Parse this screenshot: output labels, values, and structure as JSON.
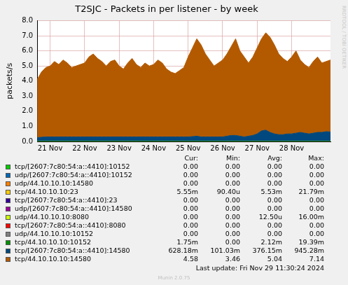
{
  "chart_data": {
    "type": "line",
    "title": "T2SJC - Packets in per listener - by week",
    "y_label": "packets/s",
    "stacked": true,
    "grid": true,
    "categories": [
      null,
      null,
      null,
      "21 Nov",
      null,
      null,
      null,
      null,
      null,
      null,
      null,
      "22 Nov",
      null,
      null,
      null,
      null,
      null,
      null,
      null,
      "23 Nov",
      null,
      null,
      null,
      null,
      null,
      null,
      null,
      "24 Nov",
      null,
      null,
      null,
      null,
      null,
      null,
      null,
      "25 Nov",
      null,
      null,
      null,
      null,
      null,
      null,
      null,
      "26 Nov",
      null,
      null,
      null,
      null,
      null,
      null,
      null,
      "27 Nov",
      null,
      null,
      null,
      null,
      null,
      null,
      null,
      "28 Nov",
      null,
      null,
      null,
      null,
      null,
      null,
      null,
      null,
      null
    ],
    "ylim": [
      0,
      8
    ],
    "yticks": [
      {
        "value": 0,
        "label": "0.0"
      },
      {
        "value": 1,
        "label": "1.0"
      },
      {
        "value": 2,
        "label": "2.0"
      },
      {
        "value": 3,
        "label": "3.0"
      },
      {
        "value": 4,
        "label": "4.0"
      },
      {
        "value": 5,
        "label": "5.0"
      },
      {
        "value": 6,
        "label": "6.0"
      },
      {
        "value": 7,
        "label": "7.0"
      },
      {
        "value": 8,
        "label": "8.0"
      }
    ],
    "stats_columns": [
      "Cur:",
      "Min:",
      "Avg:",
      "Max:"
    ],
    "series": [
      {
        "name": "tcp/[2607:7c80:54:a::4410]:10152",
        "color": "#00CC00",
        "stats": [
          "0.00",
          "0.00",
          "0.00",
          "0.00"
        ],
        "values": [
          0,
          0,
          0,
          0,
          0,
          0,
          0,
          0,
          0,
          0,
          0,
          0,
          0,
          0,
          0,
          0,
          0,
          0,
          0,
          0,
          0,
          0,
          0,
          0,
          0,
          0,
          0,
          0,
          0,
          0,
          0,
          0,
          0,
          0,
          0,
          0,
          0,
          0,
          0,
          0,
          0,
          0,
          0,
          0,
          0,
          0,
          0,
          0,
          0,
          0,
          0,
          0,
          0,
          0,
          0,
          0,
          0,
          0,
          0,
          0,
          0,
          0,
          0,
          0,
          0,
          0,
          0,
          0,
          0
        ]
      },
      {
        "name": "udp/[2607:7c80:54:a::4410]:10152",
        "color": "#0066B3",
        "stats": [
          "0.00",
          "0.00",
          "0.00",
          "0.00"
        ],
        "values": [
          0,
          0,
          0,
          0,
          0,
          0,
          0,
          0,
          0,
          0,
          0,
          0,
          0,
          0,
          0,
          0,
          0,
          0,
          0,
          0,
          0,
          0,
          0,
          0,
          0,
          0,
          0,
          0,
          0,
          0,
          0,
          0,
          0,
          0,
          0,
          0,
          0,
          0,
          0,
          0,
          0,
          0,
          0,
          0,
          0,
          0,
          0,
          0,
          0,
          0,
          0,
          0,
          0,
          0,
          0,
          0,
          0,
          0,
          0,
          0,
          0,
          0,
          0,
          0,
          0,
          0,
          0,
          0,
          0
        ]
      },
      {
        "name": "udp/44.10.10.10:14580",
        "color": "#FF8000",
        "stats": [
          "0.00",
          "0.00",
          "0.00",
          "0.00"
        ],
        "values": [
          0,
          0,
          0,
          0,
          0,
          0,
          0,
          0,
          0,
          0,
          0,
          0,
          0,
          0,
          0,
          0,
          0,
          0,
          0,
          0,
          0,
          0,
          0,
          0,
          0,
          0,
          0,
          0,
          0,
          0,
          0,
          0,
          0,
          0,
          0,
          0,
          0,
          0,
          0,
          0,
          0,
          0,
          0,
          0,
          0,
          0,
          0,
          0,
          0,
          0,
          0,
          0,
          0,
          0,
          0,
          0,
          0,
          0,
          0,
          0,
          0,
          0,
          0,
          0,
          0,
          0,
          0,
          0,
          0
        ]
      },
      {
        "name": "tcp/44.10.10.10:23",
        "color": "#FFCC00",
        "stats": [
          "5.55m",
          "90.40u",
          "5.53m",
          "21.79m"
        ],
        "values": [
          0,
          0,
          0,
          0,
          0,
          0,
          0,
          0,
          0,
          0,
          0,
          0,
          0,
          0,
          0,
          0,
          0,
          0,
          0,
          0,
          0,
          0,
          0,
          0,
          0,
          0,
          0,
          0,
          0,
          0,
          0,
          0,
          0,
          0,
          0,
          0,
          0,
          0,
          0,
          0,
          0,
          0,
          0,
          0,
          0,
          0,
          0,
          0,
          0,
          0,
          0,
          0,
          0,
          0,
          0,
          0,
          0,
          0,
          0,
          0,
          0,
          0,
          0,
          0,
          0,
          0,
          0,
          0,
          0
        ]
      },
      {
        "name": "tcp/[2607:7c80:54:a::4410]:23",
        "color": "#330099",
        "stats": [
          "0.00",
          "0.00",
          "0.00",
          "0.00"
        ],
        "values": [
          0,
          0,
          0,
          0,
          0,
          0,
          0,
          0,
          0,
          0,
          0,
          0,
          0,
          0,
          0,
          0,
          0,
          0,
          0,
          0,
          0,
          0,
          0,
          0,
          0,
          0,
          0,
          0,
          0,
          0,
          0,
          0,
          0,
          0,
          0,
          0,
          0,
          0,
          0,
          0,
          0,
          0,
          0,
          0,
          0,
          0,
          0,
          0,
          0,
          0,
          0,
          0,
          0,
          0,
          0,
          0,
          0,
          0,
          0,
          0,
          0,
          0,
          0,
          0,
          0,
          0,
          0,
          0,
          0
        ]
      },
      {
        "name": "udp/[2607:7c80:54:a::4410]:14580",
        "color": "#990099",
        "stats": [
          "0.00",
          "0.00",
          "0.00",
          "0.00"
        ],
        "values": [
          0,
          0,
          0,
          0,
          0,
          0,
          0,
          0,
          0,
          0,
          0,
          0,
          0,
          0,
          0,
          0,
          0,
          0,
          0,
          0,
          0,
          0,
          0,
          0,
          0,
          0,
          0,
          0,
          0,
          0,
          0,
          0,
          0,
          0,
          0,
          0,
          0,
          0,
          0,
          0,
          0,
          0,
          0,
          0,
          0,
          0,
          0,
          0,
          0,
          0,
          0,
          0,
          0,
          0,
          0,
          0,
          0,
          0,
          0,
          0,
          0,
          0,
          0,
          0,
          0,
          0,
          0,
          0,
          0
        ]
      },
      {
        "name": "udp/44.10.10.10:8080",
        "color": "#CCFF00",
        "stats": [
          "0.00",
          "0.00",
          "12.50u",
          "16.00m"
        ],
        "values": [
          0,
          0,
          0,
          0,
          0,
          0,
          0,
          0,
          0,
          0,
          0,
          0,
          0,
          0,
          0,
          0,
          0,
          0,
          0,
          0,
          0,
          0,
          0,
          0,
          0,
          0,
          0,
          0,
          0,
          0,
          0,
          0,
          0,
          0,
          0,
          0,
          0,
          0,
          0,
          0,
          0,
          0,
          0,
          0,
          0,
          0,
          0,
          0,
          0,
          0,
          0,
          0,
          0,
          0,
          0,
          0,
          0,
          0,
          0,
          0,
          0,
          0,
          0,
          0,
          0,
          0,
          0,
          0,
          0
        ]
      },
      {
        "name": "tcp/[2607:7c80:54:a::4410]:8080",
        "color": "#FF0000",
        "stats": [
          "0.00",
          "0.00",
          "0.00",
          "0.00"
        ],
        "values": [
          0,
          0,
          0,
          0,
          0,
          0,
          0,
          0,
          0,
          0,
          0,
          0,
          0,
          0,
          0,
          0,
          0,
          0,
          0,
          0,
          0,
          0,
          0,
          0,
          0,
          0,
          0,
          0,
          0,
          0,
          0,
          0,
          0,
          0,
          0,
          0,
          0,
          0,
          0,
          0,
          0,
          0,
          0,
          0,
          0,
          0,
          0,
          0,
          0,
          0,
          0,
          0,
          0,
          0,
          0,
          0,
          0,
          0,
          0,
          0,
          0,
          0,
          0,
          0,
          0,
          0,
          0,
          0,
          0
        ]
      },
      {
        "name": "udp/44.10.10.10:10152",
        "color": "#808080",
        "stats": [
          "0.00",
          "0.00",
          "0.00",
          "0.00"
        ],
        "values": [
          0,
          0,
          0,
          0,
          0,
          0,
          0,
          0,
          0,
          0,
          0,
          0,
          0,
          0,
          0,
          0,
          0,
          0,
          0,
          0,
          0,
          0,
          0,
          0,
          0,
          0,
          0,
          0,
          0,
          0,
          0,
          0,
          0,
          0,
          0,
          0,
          0,
          0,
          0,
          0,
          0,
          0,
          0,
          0,
          0,
          0,
          0,
          0,
          0,
          0,
          0,
          0,
          0,
          0,
          0,
          0,
          0,
          0,
          0,
          0,
          0,
          0,
          0,
          0,
          0,
          0,
          0,
          0,
          0
        ]
      },
      {
        "name": "tcp/44.10.10.10:10152",
        "color": "#008F00",
        "stats": [
          "1.75m",
          "0.00",
          "2.12m",
          "19.39m"
        ],
        "values": [
          0,
          0,
          0,
          0,
          0,
          0,
          0,
          0,
          0,
          0,
          0,
          0,
          0,
          0,
          0,
          0,
          0,
          0,
          0,
          0,
          0,
          0,
          0,
          0,
          0,
          0,
          0,
          0,
          0,
          0,
          0,
          0,
          0,
          0,
          0,
          0,
          0,
          0,
          0,
          0,
          0,
          0,
          0,
          0,
          0,
          0,
          0,
          0,
          0,
          0,
          0,
          0,
          0,
          0,
          0,
          0,
          0,
          0,
          0,
          0,
          0,
          0,
          0,
          0,
          0,
          0,
          0,
          0,
          0
        ]
      },
      {
        "name": "tcp/[2607:7c80:54:a::4410]:14580",
        "color": "#00487D",
        "stats": [
          "628.18m",
          "101.03m",
          "376.15m",
          "945.28m"
        ],
        "values": [
          0.25,
          0.28,
          0.3,
          0.3,
          0.3,
          0.3,
          0.3,
          0.3,
          0.3,
          0.3,
          0.3,
          0.3,
          0.3,
          0.3,
          0.3,
          0.3,
          0.3,
          0.3,
          0.3,
          0.3,
          0.3,
          0.3,
          0.3,
          0.3,
          0.3,
          0.3,
          0.3,
          0.3,
          0.3,
          0.3,
          0.3,
          0.3,
          0.3,
          0.3,
          0.3,
          0.3,
          0.32,
          0.35,
          0.3,
          0.3,
          0.3,
          0.3,
          0.3,
          0.3,
          0.35,
          0.4,
          0.4,
          0.35,
          0.3,
          0.35,
          0.4,
          0.5,
          0.7,
          0.75,
          0.6,
          0.5,
          0.45,
          0.45,
          0.5,
          0.5,
          0.55,
          0.6,
          0.55,
          0.5,
          0.55,
          0.6,
          0.6,
          0.65,
          0.63
        ]
      },
      {
        "name": "tcp/44.10.10.10:14580",
        "color": "#B35A00",
        "stats": [
          "4.58",
          "3.46",
          "5.04",
          "7.14"
        ],
        "values": [
          3.85,
          4.32,
          4.6,
          4.7,
          5.0,
          4.8,
          5.1,
          4.9,
          4.6,
          4.7,
          4.8,
          4.9,
          5.3,
          5.5,
          5.2,
          5.0,
          4.7,
          5.0,
          5.1,
          4.7,
          4.5,
          4.9,
          5.2,
          4.8,
          4.6,
          4.9,
          4.7,
          4.8,
          5.1,
          4.9,
          4.5,
          4.3,
          4.2,
          4.4,
          4.6,
          5.3,
          5.88,
          6.45,
          6.1,
          5.5,
          5.1,
          4.7,
          4.9,
          5.1,
          5.45,
          5.9,
          6.4,
          5.65,
          5.3,
          4.85,
          5.2,
          5.7,
          6.1,
          6.45,
          6.3,
          5.9,
          5.35,
          5.05,
          4.8,
          5.1,
          5.45,
          4.8,
          4.55,
          4.4,
          4.75,
          5.0,
          4.6,
          4.65,
          4.77
        ]
      }
    ],
    "last_update": "Last update: Fri Nov 29 11:30:24 2024",
    "footer": "Munin 2.0.75",
    "side_text": "RRDTOOL / TOBI OETIKER"
  }
}
